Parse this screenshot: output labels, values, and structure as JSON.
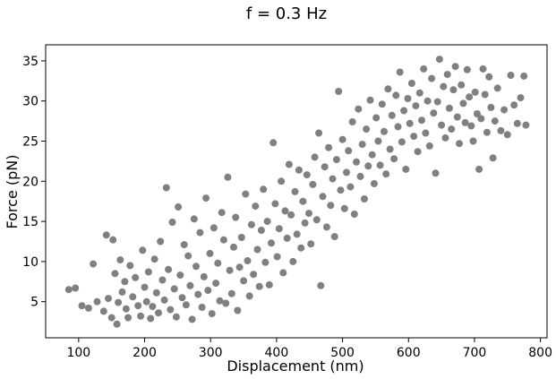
{
  "chart_data": {
    "type": "scatter",
    "title": "f = 0.3 Hz",
    "xlabel": "Displacement (nm)",
    "ylabel": "Force (pN)",
    "xlim": [
      50,
      810
    ],
    "ylim": [
      0.5,
      37
    ],
    "xticks": [
      100,
      200,
      300,
      400,
      500,
      600,
      700,
      800
    ],
    "yticks": [
      5,
      10,
      15,
      20,
      25,
      30,
      35
    ],
    "grid": false,
    "legend": "none",
    "marker_color": "#808080",
    "series": [
      {
        "points": [
          [
            85,
            6.5
          ],
          [
            95,
            6.7
          ],
          [
            105,
            4.5
          ],
          [
            115,
            4.2
          ],
          [
            122,
            9.7
          ],
          [
            128,
            5.0
          ],
          [
            138,
            3.8
          ],
          [
            142,
            13.3
          ],
          [
            145,
            5.4
          ],
          [
            150,
            3.0
          ],
          [
            152,
            12.7
          ],
          [
            155,
            8.5
          ],
          [
            158,
            2.2
          ],
          [
            160,
            4.9
          ],
          [
            163,
            10.2
          ],
          [
            166,
            6.2
          ],
          [
            170,
            7.5
          ],
          [
            172,
            4.1
          ],
          [
            175,
            3.0
          ],
          [
            178,
            9.5
          ],
          [
            182,
            5.6
          ],
          [
            186,
            8.0
          ],
          [
            190,
            4.5
          ],
          [
            194,
            3.2
          ],
          [
            197,
            11.4
          ],
          [
            200,
            6.8
          ],
          [
            203,
            5.0
          ],
          [
            206,
            8.7
          ],
          [
            209,
            2.9
          ],
          [
            212,
            4.4
          ],
          [
            215,
            10.3
          ],
          [
            218,
            6.1
          ],
          [
            221,
            3.6
          ],
          [
            224,
            12.5
          ],
          [
            227,
            7.7
          ],
          [
            230,
            5.2
          ],
          [
            233,
            19.2
          ],
          [
            236,
            9.0
          ],
          [
            239,
            4.0
          ],
          [
            242,
            14.9
          ],
          [
            245,
            6.6
          ],
          [
            248,
            3.1
          ],
          [
            251,
            16.8
          ],
          [
            254,
            8.3
          ],
          [
            257,
            5.5
          ],
          [
            260,
            12.1
          ],
          [
            263,
            4.6
          ],
          [
            266,
            10.7
          ],
          [
            269,
            7.0
          ],
          [
            272,
            2.8
          ],
          [
            275,
            15.3
          ],
          [
            278,
            9.4
          ],
          [
            281,
            5.9
          ],
          [
            284,
            13.6
          ],
          [
            287,
            4.3
          ],
          [
            290,
            8.1
          ],
          [
            293,
            17.9
          ],
          [
            296,
            6.4
          ],
          [
            299,
            11.0
          ],
          [
            302,
            3.5
          ],
          [
            305,
            14.2
          ],
          [
            308,
            7.3
          ],
          [
            311,
            9.8
          ],
          [
            314,
            5.1
          ],
          [
            317,
            16.1
          ],
          [
            320,
            12.7
          ],
          [
            323,
            4.8
          ],
          [
            326,
            20.5
          ],
          [
            329,
            8.9
          ],
          [
            332,
            6.0
          ],
          [
            335,
            11.8
          ],
          [
            338,
            15.5
          ],
          [
            341,
            3.9
          ],
          [
            344,
            9.3
          ],
          [
            347,
            13.0
          ],
          [
            350,
            7.6
          ],
          [
            353,
            18.4
          ],
          [
            356,
            10.1
          ],
          [
            359,
            5.7
          ],
          [
            362,
            14.6
          ],
          [
            365,
            8.4
          ],
          [
            368,
            16.9
          ],
          [
            371,
            11.5
          ],
          [
            374,
            6.9
          ],
          [
            377,
            13.9
          ],
          [
            380,
            19.0
          ],
          [
            383,
            9.9
          ],
          [
            386,
            15.0
          ],
          [
            389,
            7.1
          ],
          [
            392,
            12.3
          ],
          [
            395,
            24.8
          ],
          [
            398,
            17.2
          ],
          [
            401,
            10.6
          ],
          [
            404,
            14.1
          ],
          [
            407,
            20.0
          ],
          [
            410,
            8.6
          ],
          [
            413,
            16.3
          ],
          [
            416,
            12.9
          ],
          [
            419,
            22.1
          ],
          [
            422,
            15.8
          ],
          [
            425,
            10.0
          ],
          [
            428,
            18.7
          ],
          [
            431,
            13.4
          ],
          [
            434,
            21.4
          ],
          [
            437,
            11.7
          ],
          [
            440,
            17.5
          ],
          [
            443,
            14.8
          ],
          [
            446,
            20.8
          ],
          [
            449,
            16.0
          ],
          [
            452,
            12.2
          ],
          [
            455,
            19.6
          ],
          [
            458,
            23.0
          ],
          [
            461,
            15.2
          ],
          [
            464,
            26.0
          ],
          [
            467,
            7.0
          ],
          [
            470,
            18.1
          ],
          [
            473,
            21.8
          ],
          [
            476,
            14.3
          ],
          [
            479,
            24.2
          ],
          [
            482,
            17.0
          ],
          [
            485,
            20.3
          ],
          [
            488,
            13.1
          ],
          [
            491,
            22.7
          ],
          [
            494,
            31.2
          ],
          [
            497,
            18.9
          ],
          [
            500,
            25.2
          ],
          [
            503,
            16.6
          ],
          [
            506,
            21.1
          ],
          [
            509,
            23.8
          ],
          [
            512,
            19.3
          ],
          [
            515,
            27.4
          ],
          [
            518,
            15.9
          ],
          [
            521,
            22.4
          ],
          [
            524,
            29.0
          ],
          [
            527,
            20.6
          ],
          [
            530,
            24.6
          ],
          [
            533,
            17.8
          ],
          [
            536,
            26.5
          ],
          [
            539,
            21.9
          ],
          [
            542,
            30.1
          ],
          [
            545,
            23.3
          ],
          [
            548,
            19.7
          ],
          [
            551,
            27.9
          ],
          [
            554,
            25.0
          ],
          [
            557,
            22.0
          ],
          [
            560,
            29.6
          ],
          [
            563,
            26.2
          ],
          [
            566,
            20.9
          ],
          [
            569,
            31.5
          ],
          [
            572,
            24.0
          ],
          [
            575,
            28.2
          ],
          [
            578,
            22.8
          ],
          [
            581,
            30.7
          ],
          [
            584,
            26.8
          ],
          [
            587,
            33.6
          ],
          [
            590,
            24.9
          ],
          [
            593,
            28.8
          ],
          [
            596,
            21.5
          ],
          [
            599,
            30.3
          ],
          [
            602,
            27.2
          ],
          [
            605,
            32.2
          ],
          [
            608,
            25.6
          ],
          [
            611,
            29.4
          ],
          [
            614,
            23.7
          ],
          [
            617,
            31.0
          ],
          [
            620,
            27.6
          ],
          [
            623,
            34.0
          ],
          [
            626,
            26.0
          ],
          [
            629,
            30.0
          ],
          [
            632,
            24.4
          ],
          [
            635,
            32.8
          ],
          [
            638,
            28.5
          ],
          [
            641,
            21.0
          ],
          [
            644,
            29.9
          ],
          [
            647,
            35.2
          ],
          [
            650,
            27.0
          ],
          [
            653,
            31.8
          ],
          [
            656,
            25.4
          ],
          [
            659,
            33.3
          ],
          [
            662,
            29.1
          ],
          [
            665,
            26.5
          ],
          [
            668,
            31.4
          ],
          [
            671,
            34.3
          ],
          [
            674,
            28.0
          ],
          [
            677,
            24.7
          ],
          [
            680,
            32.0
          ],
          [
            683,
            29.7
          ],
          [
            686,
            27.3
          ],
          [
            689,
            33.9
          ],
          [
            692,
            30.5
          ],
          [
            695,
            26.9
          ],
          [
            698,
            25.0
          ],
          [
            701,
            31.1
          ],
          [
            704,
            28.4
          ],
          [
            707,
            21.5
          ],
          [
            710,
            27.8
          ],
          [
            713,
            34.0
          ],
          [
            716,
            30.8
          ],
          [
            719,
            26.1
          ],
          [
            722,
            33.0
          ],
          [
            725,
            29.2
          ],
          [
            728,
            22.9
          ],
          [
            731,
            27.5
          ],
          [
            735,
            31.6
          ],
          [
            740,
            26.3
          ],
          [
            745,
            28.9
          ],
          [
            750,
            25.8
          ],
          [
            755,
            33.2
          ],
          [
            760,
            29.5
          ],
          [
            765,
            27.2
          ],
          [
            770,
            30.4
          ],
          [
            775,
            33.1
          ],
          [
            778,
            27.0
          ]
        ]
      }
    ]
  }
}
